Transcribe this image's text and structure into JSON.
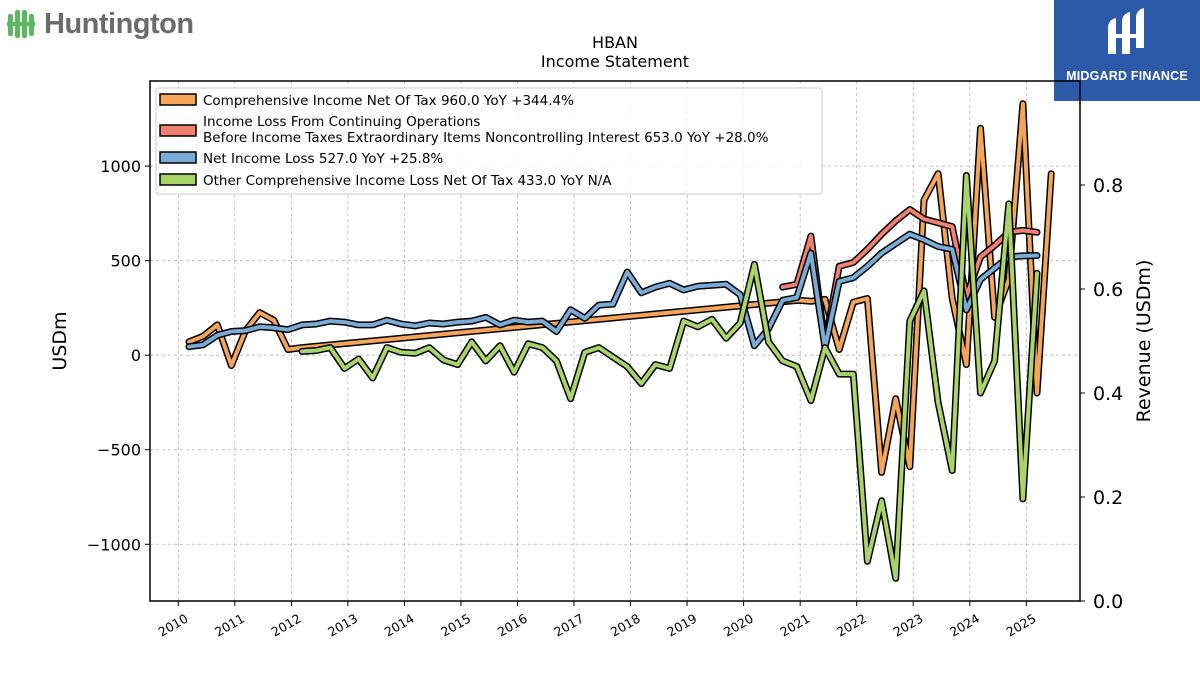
{
  "brand": {
    "left_logo_text": "Huntington",
    "left_logo_color": "#5cb85c",
    "right_logo_text": "MIDGARD FINANCE",
    "right_logo_bg": "#2d5aa8"
  },
  "chart_data": {
    "type": "line",
    "title": "HBAN",
    "subtitle": "Income Statement",
    "ylabel": "USDm",
    "y2label": "Revenue (USDm)",
    "ylim": [
      -1300,
      1450
    ],
    "y2lim": [
      0.0,
      1.0
    ],
    "xlim": [
      2009.5,
      2025.95
    ],
    "yticks": [
      1000,
      500,
      0,
      -500,
      -1000
    ],
    "ytick_labels": [
      "1000",
      "500",
      "0",
      "−500",
      "−1000"
    ],
    "y2ticks": [
      0.8,
      0.6,
      0.4,
      0.2,
      0.0
    ],
    "y2tick_labels": [
      "0.8",
      "0.6",
      "0.4",
      "0.2",
      "0.0"
    ],
    "xticks": [
      2010,
      2011,
      2012,
      2013,
      2014,
      2015,
      2016,
      2017,
      2018,
      2019,
      2020,
      2021,
      2022,
      2023,
      2024,
      2025
    ],
    "xtick_labels": [
      "2010",
      "2011",
      "2012",
      "2013",
      "2014",
      "2015",
      "2016",
      "2017",
      "2018",
      "2019",
      "2020",
      "2021",
      "2022",
      "2023",
      "2024",
      "2025"
    ],
    "grid": true,
    "legend_position": "top-left",
    "series": [
      {
        "name": "Comprehensive Income Net Of Tax",
        "legend_label": "Comprehensive Income Net Of Tax  960.0 YoY +344.4%",
        "color": "#f5a55a",
        "points": [
          [
            2010.19,
            70
          ],
          [
            2010.44,
            100
          ],
          [
            2010.69,
            160
          ],
          [
            2010.94,
            -55
          ],
          [
            2011.19,
            130
          ],
          [
            2011.44,
            225
          ],
          [
            2011.69,
            185
          ],
          [
            2011.94,
            30
          ],
          [
            2012.19,
            40
          ],
          [
            2020.97,
            290
          ],
          [
            2021.19,
            285
          ],
          [
            2021.44,
            295
          ],
          [
            2021.69,
            30
          ],
          [
            2021.94,
            280
          ],
          [
            2022.19,
            300
          ],
          [
            2022.44,
            -620
          ],
          [
            2022.69,
            -230
          ],
          [
            2022.94,
            -590
          ],
          [
            2023.19,
            820
          ],
          [
            2023.44,
            960
          ],
          [
            2023.69,
            300
          ],
          [
            2023.94,
            -50
          ],
          [
            2024.19,
            1200
          ],
          [
            2024.44,
            200
          ],
          [
            2024.69,
            400
          ],
          [
            2024.94,
            1330
          ],
          [
            2025.19,
            -200
          ],
          [
            2025.44,
            960
          ]
        ]
      },
      {
        "name": "Income Loss From Continuing Operations Before Income Taxes Extraordinary Items Noncontrolling Interest",
        "legend_label_line1": "Income Loss From Continuing Operations",
        "legend_label_line2": "Before Income Taxes Extraordinary Items Noncontrolling Interest  653.0 YoY +28.0%",
        "color": "#f08070",
        "points": [
          [
            2020.69,
            360
          ],
          [
            2020.94,
            375
          ],
          [
            2021.19,
            630
          ],
          [
            2021.44,
            60
          ],
          [
            2021.69,
            470
          ],
          [
            2021.94,
            490
          ],
          [
            2022.19,
            560
          ],
          [
            2022.44,
            640
          ],
          [
            2022.69,
            710
          ],
          [
            2022.94,
            770
          ],
          [
            2023.19,
            720
          ],
          [
            2023.44,
            700
          ],
          [
            2023.69,
            680
          ],
          [
            2023.94,
            310
          ],
          [
            2024.19,
            520
          ],
          [
            2024.44,
            580
          ],
          [
            2024.69,
            650
          ],
          [
            2024.94,
            660
          ],
          [
            2025.19,
            650
          ]
        ]
      },
      {
        "name": "Net Income Loss",
        "legend_label": "Net Income Loss  527.0 YoY +25.8%",
        "color": "#78acd6",
        "points": [
          [
            2010.19,
            45
          ],
          [
            2010.44,
            55
          ],
          [
            2010.69,
            105
          ],
          [
            2010.94,
            125
          ],
          [
            2011.19,
            130
          ],
          [
            2011.44,
            150
          ],
          [
            2011.69,
            145
          ],
          [
            2011.94,
            135
          ],
          [
            2012.19,
            160
          ],
          [
            2012.44,
            165
          ],
          [
            2012.69,
            180
          ],
          [
            2012.94,
            175
          ],
          [
            2013.19,
            160
          ],
          [
            2013.44,
            160
          ],
          [
            2013.69,
            185
          ],
          [
            2013.94,
            165
          ],
          [
            2014.19,
            155
          ],
          [
            2014.44,
            170
          ],
          [
            2014.69,
            165
          ],
          [
            2014.94,
            175
          ],
          [
            2015.19,
            180
          ],
          [
            2015.44,
            200
          ],
          [
            2015.69,
            160
          ],
          [
            2015.94,
            185
          ],
          [
            2016.19,
            175
          ],
          [
            2016.44,
            180
          ],
          [
            2016.69,
            125
          ],
          [
            2016.94,
            240
          ],
          [
            2017.19,
            195
          ],
          [
            2017.44,
            265
          ],
          [
            2017.69,
            270
          ],
          [
            2017.94,
            440
          ],
          [
            2018.19,
            330
          ],
          [
            2018.44,
            360
          ],
          [
            2018.69,
            380
          ],
          [
            2018.94,
            345
          ],
          [
            2019.19,
            365
          ],
          [
            2019.44,
            370
          ],
          [
            2019.69,
            375
          ],
          [
            2019.94,
            320
          ],
          [
            2020.19,
            50
          ],
          [
            2020.44,
            140
          ],
          [
            2020.69,
            290
          ],
          [
            2020.94,
            305
          ],
          [
            2021.19,
            540
          ],
          [
            2021.44,
            40
          ],
          [
            2021.69,
            390
          ],
          [
            2021.94,
            410
          ],
          [
            2022.19,
            470
          ],
          [
            2022.44,
            540
          ],
          [
            2022.69,
            590
          ],
          [
            2022.94,
            640
          ],
          [
            2023.19,
            610
          ],
          [
            2023.44,
            575
          ],
          [
            2023.69,
            560
          ],
          [
            2023.94,
            240
          ],
          [
            2024.19,
            400
          ],
          [
            2024.44,
            460
          ],
          [
            2024.69,
            520
          ],
          [
            2024.94,
            525
          ],
          [
            2025.19,
            527
          ]
        ]
      },
      {
        "name": "Other Comprehensive Income Loss Net Of Tax",
        "legend_label": "Other Comprehensive Income Loss Net Of Tax  433.0 YoY N/A",
        "color": "#a8d46a",
        "points": [
          [
            2012.19,
            20
          ],
          [
            2012.44,
            25
          ],
          [
            2012.69,
            40
          ],
          [
            2012.94,
            -70
          ],
          [
            2013.19,
            -20
          ],
          [
            2013.44,
            -120
          ],
          [
            2013.69,
            40
          ],
          [
            2013.94,
            15
          ],
          [
            2014.19,
            10
          ],
          [
            2014.44,
            40
          ],
          [
            2014.69,
            -25
          ],
          [
            2014.94,
            -50
          ],
          [
            2015.19,
            70
          ],
          [
            2015.44,
            -30
          ],
          [
            2015.69,
            50
          ],
          [
            2015.94,
            -90
          ],
          [
            2016.19,
            60
          ],
          [
            2016.44,
            40
          ],
          [
            2016.69,
            -30
          ],
          [
            2016.94,
            -230
          ],
          [
            2017.19,
            15
          ],
          [
            2017.44,
            40
          ],
          [
            2017.69,
            -10
          ],
          [
            2017.94,
            -60
          ],
          [
            2018.19,
            -150
          ],
          [
            2018.44,
            -50
          ],
          [
            2018.69,
            -70
          ],
          [
            2018.94,
            180
          ],
          [
            2019.19,
            150
          ],
          [
            2019.44,
            190
          ],
          [
            2019.69,
            90
          ],
          [
            2019.94,
            170
          ],
          [
            2020.19,
            480
          ],
          [
            2020.44,
            70
          ],
          [
            2020.69,
            -30
          ],
          [
            2020.94,
            -60
          ],
          [
            2021.19,
            -240
          ],
          [
            2021.44,
            40
          ],
          [
            2021.69,
            -100
          ],
          [
            2021.94,
            -100
          ],
          [
            2022.19,
            -1090
          ],
          [
            2022.44,
            -770
          ],
          [
            2022.69,
            -1180
          ],
          [
            2022.94,
            180
          ],
          [
            2023.19,
            340
          ],
          [
            2023.44,
            -250
          ],
          [
            2023.69,
            -610
          ],
          [
            2023.94,
            950
          ],
          [
            2024.19,
            -200
          ],
          [
            2024.44,
            -30
          ],
          [
            2024.69,
            800
          ],
          [
            2024.94,
            -760
          ],
          [
            2025.19,
            433
          ]
        ]
      }
    ]
  }
}
